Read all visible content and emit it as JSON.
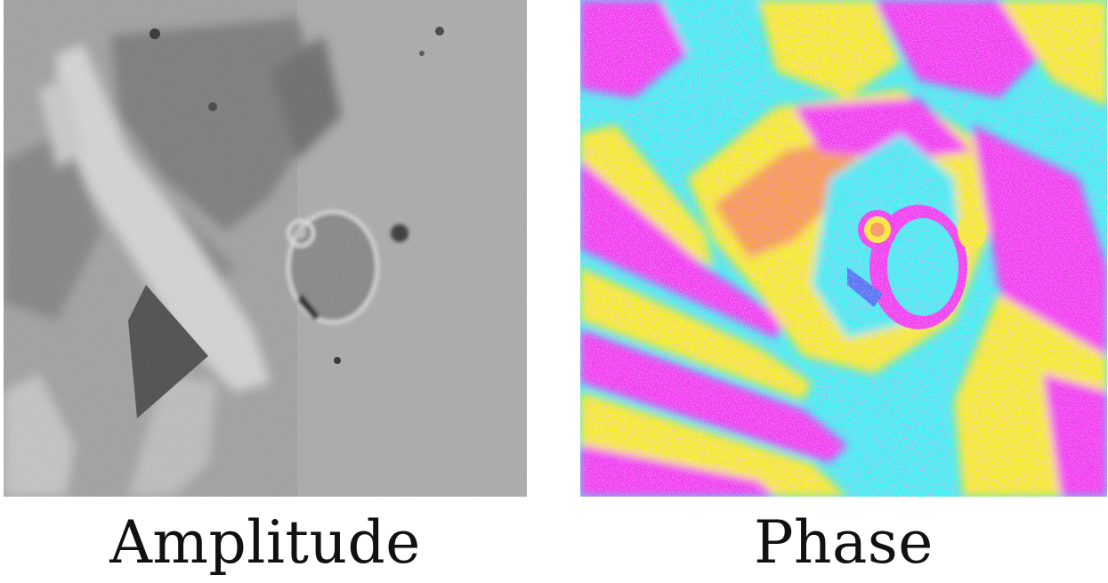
{
  "panels": [
    {
      "caption": "Amplitude"
    },
    {
      "caption": "Phase"
    }
  ],
  "colors": {
    "background": "#ffffff",
    "caption_text": "#111111",
    "amplitude_base": "#a8a8a8",
    "phase_cyan": "#33f5f0",
    "phase_yellow": "#f5f514",
    "phase_magenta": "#f03cf0"
  }
}
